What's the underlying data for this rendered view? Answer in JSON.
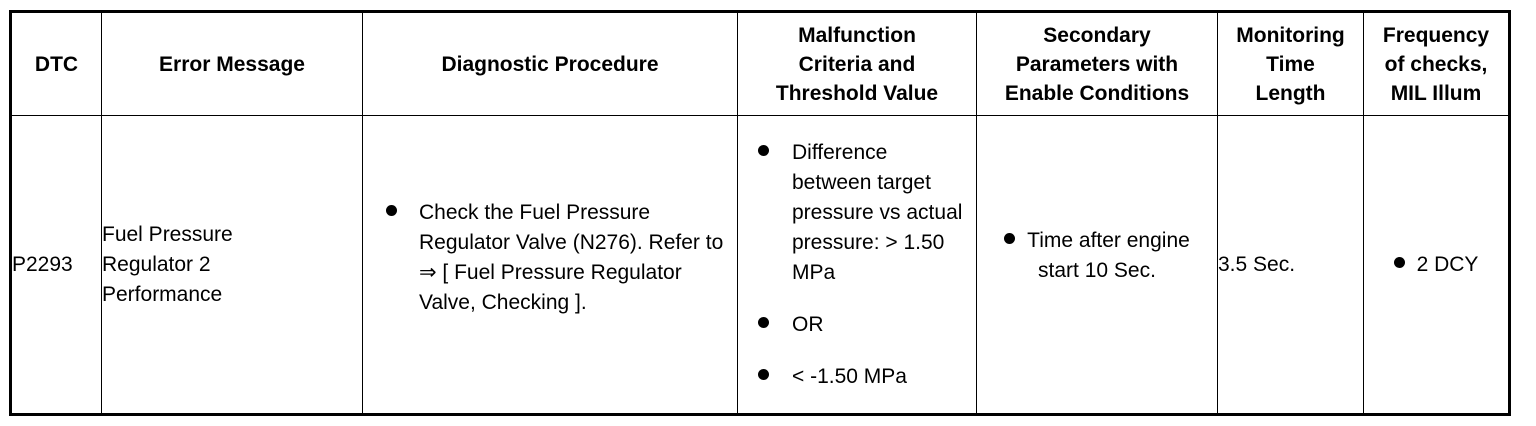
{
  "headers": {
    "dtc": "DTC",
    "error_message": "Error Message",
    "diagnostic_procedure": "Diagnostic Procedure",
    "malfunction_line1": "Malfunction",
    "malfunction_line2": "Criteria and",
    "malfunction_line3": "Threshold Value",
    "secondary_line1": "Secondary",
    "secondary_line2": "Parameters with",
    "secondary_line3": "Enable Conditions",
    "monitoring_line1": "Monitoring",
    "monitoring_line2": "Time",
    "monitoring_line3": "Length",
    "frequency_line1": "Frequency",
    "frequency_line2": "of checks,",
    "frequency_line3": "MIL Illum"
  },
  "row": {
    "dtc": "P2293",
    "error_message_line1": "Fuel Pressure",
    "error_message_line2": "Regulator 2",
    "error_message_line3": "Performance",
    "diagnostic_procedure": "Check the Fuel Pressure Regulator Valve (N276). Refer to ⇒ [ Fuel Pressure Regulator Valve, Checking ].",
    "malfunction_criteria": [
      "Difference between target pressure vs actual pressure: > 1.50 MPa",
      "OR",
      "< -1.50 MPa"
    ],
    "secondary_parameters": "Time after engine start 10 Sec.",
    "monitoring_time": "3.5 Sec.",
    "frequency": "2 DCY"
  },
  "icons": {
    "bullet": "filled-circle"
  },
  "colors": {
    "text": "#000000",
    "border": "#000000",
    "background": "#ffffff"
  }
}
